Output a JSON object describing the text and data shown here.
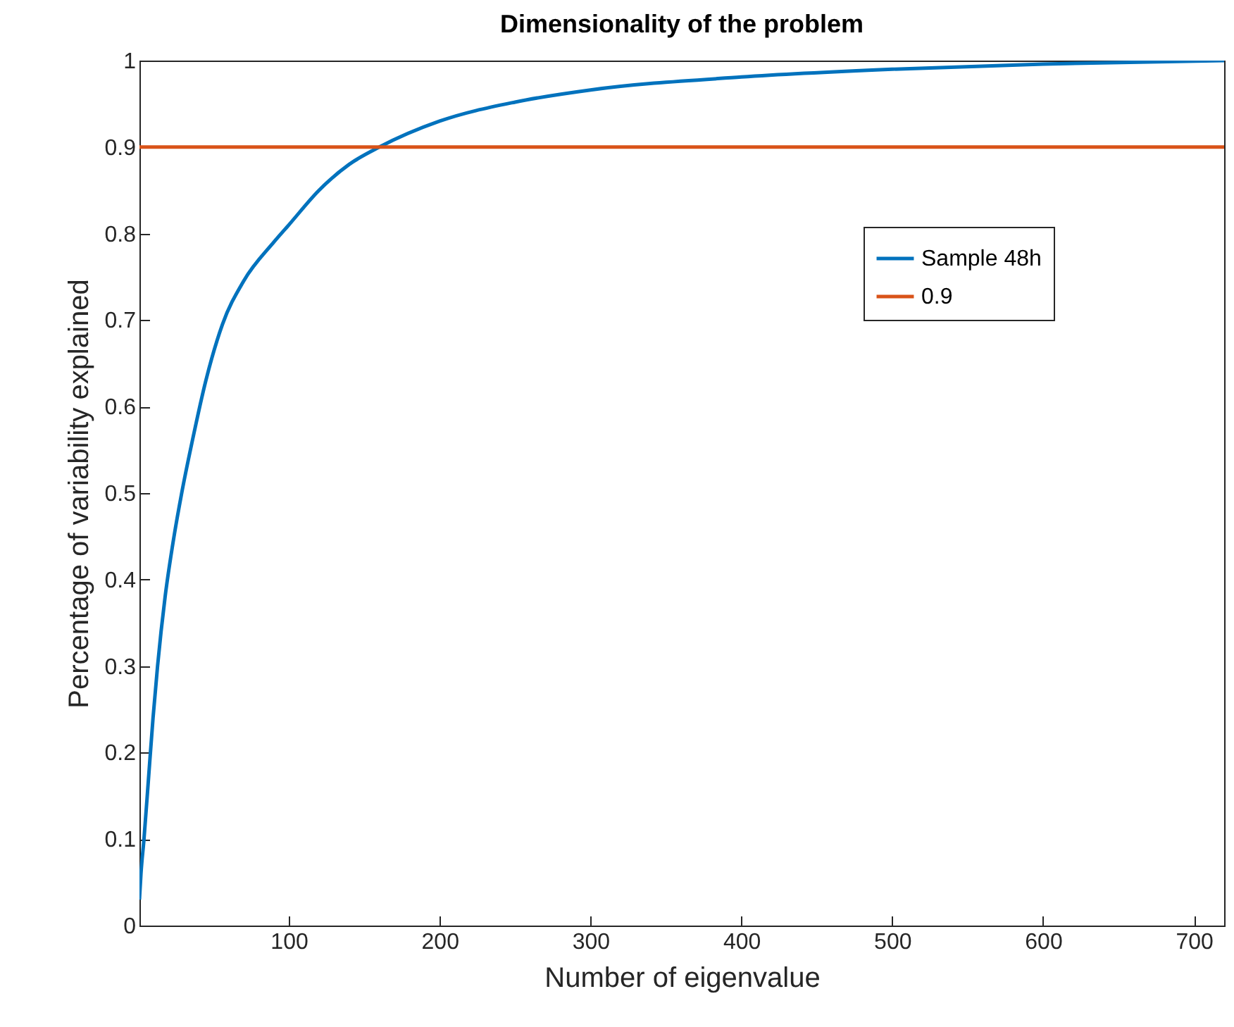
{
  "chart_data": {
    "type": "line",
    "title": "Dimensionality of the problem",
    "xlabel": "Number of eigenvalue",
    "ylabel": "Percentage of variability explained",
    "xlim": [
      1,
      720
    ],
    "ylim": [
      0,
      1
    ],
    "xticks": [
      100,
      200,
      300,
      400,
      500,
      600,
      700
    ],
    "yticks": [
      0,
      0.1,
      0.2,
      0.3,
      0.4,
      0.5,
      0.6,
      0.7,
      0.8,
      0.9,
      1
    ],
    "grid": false,
    "legend": "top right",
    "line_style": "solid",
    "marker": "none",
    "series": [
      {
        "name": "Sample 48h",
        "color": "#0072bd",
        "x": [
          1,
          2,
          4,
          7,
          10,
          13,
          18,
          23,
          29,
          36,
          45,
          56,
          70,
          90,
          100,
          120,
          140,
          160,
          200,
          250,
          300,
          400,
          500,
          600,
          720
        ],
        "values": [
          0.03,
          0.06,
          0.1,
          0.17,
          0.24,
          0.3,
          0.38,
          0.44,
          0.5,
          0.56,
          0.63,
          0.695,
          0.745,
          0.79,
          0.81,
          0.85,
          0.88,
          0.9,
          0.93,
          0.952,
          0.966,
          0.981,
          0.99,
          0.996,
          1.0
        ]
      },
      {
        "name": "0.9",
        "color": "#d95319",
        "x": [
          1,
          720
        ],
        "values": [
          0.9,
          0.9
        ]
      }
    ]
  }
}
